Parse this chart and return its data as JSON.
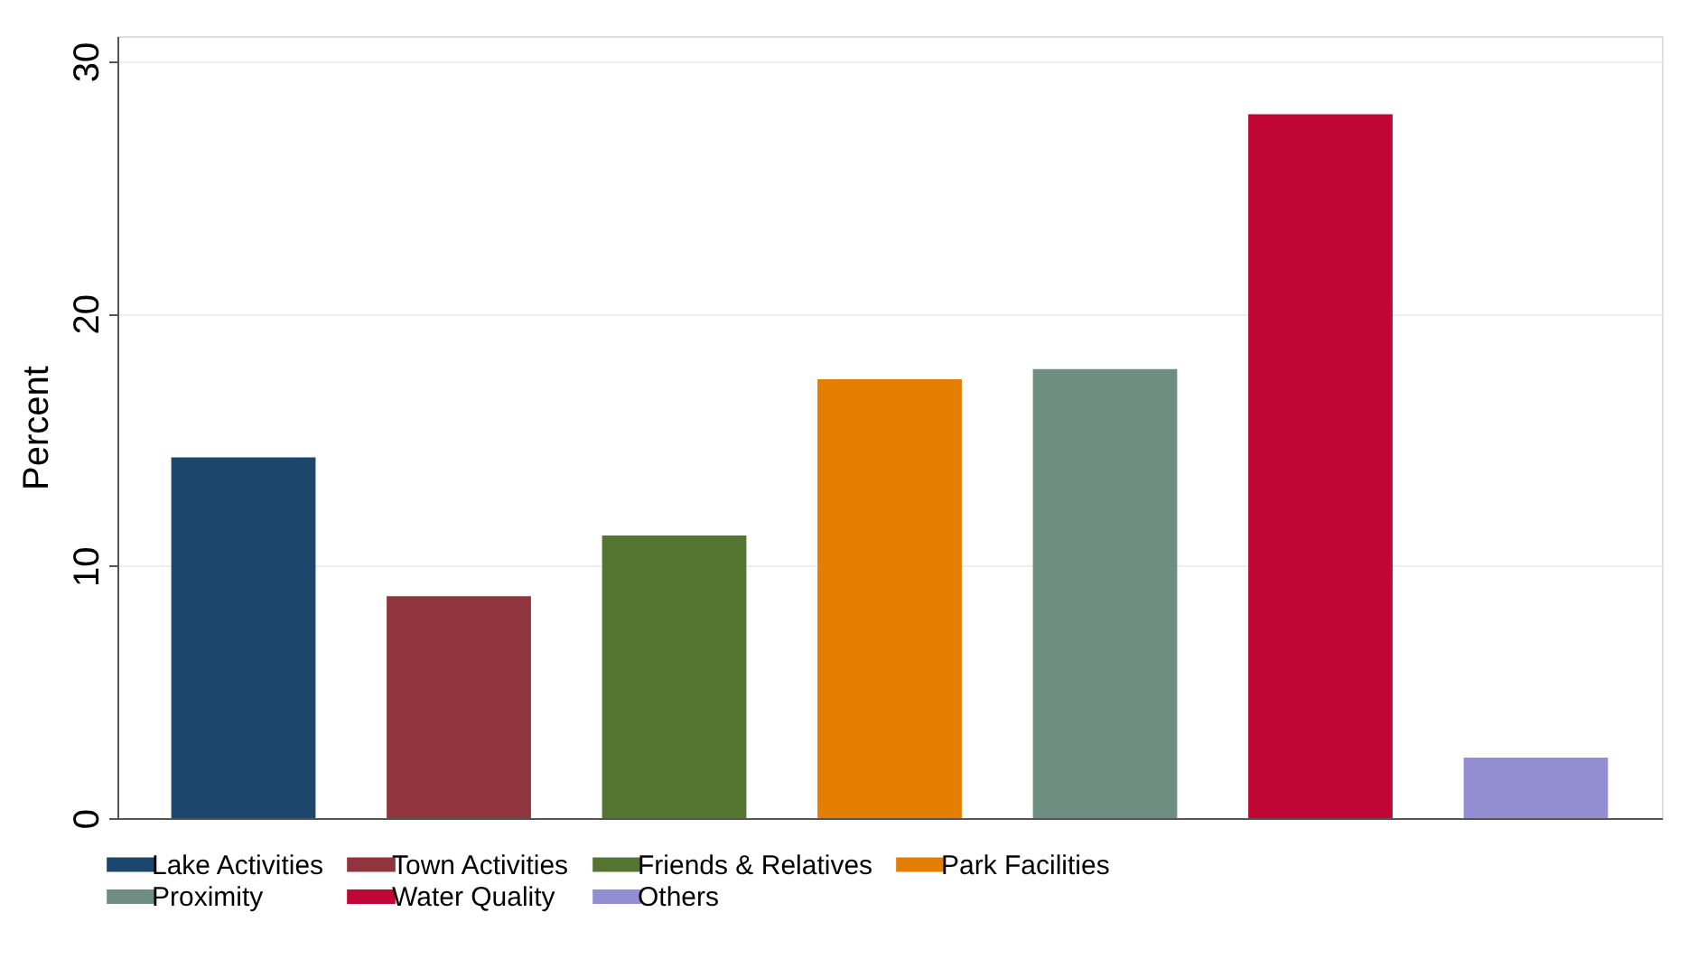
{
  "chart_data": {
    "type": "bar",
    "ylabel": "Percent",
    "categories": [
      null,
      null,
      null,
      null,
      null,
      null,
      null
    ],
    "series": [
      {
        "name": "Lake Activities",
        "color": "#1c466c",
        "values": [
          14.3,
          null,
          null,
          null,
          null,
          null,
          null
        ]
      },
      {
        "name": "Town Activities",
        "color": "#90353e",
        "values": [
          null,
          8.8,
          null,
          null,
          null,
          null,
          null
        ]
      },
      {
        "name": "Friends & Relatives",
        "color": "#557630",
        "values": [
          null,
          null,
          11.2,
          null,
          null,
          null,
          null
        ]
      },
      {
        "name": "Park Facilities",
        "color": "#e37e00",
        "values": [
          null,
          null,
          null,
          17.4,
          null,
          null,
          null
        ]
      },
      {
        "name": "Proximity",
        "color": "#6e8e82",
        "values": [
          null,
          null,
          null,
          null,
          17.8,
          null,
          null
        ]
      },
      {
        "name": "Water Quality",
        "color": "#c10534",
        "values": [
          null,
          null,
          null,
          null,
          null,
          27.9,
          null
        ]
      },
      {
        "name": "Others",
        "color": "#938dd2",
        "values": [
          null,
          null,
          null,
          null,
          null,
          null,
          2.4
        ]
      }
    ],
    "ylim": [
      0,
      31
    ],
    "yticks": [
      0,
      10,
      20,
      30
    ],
    "grid": "y",
    "legend": "bottom",
    "tick_labels": "y"
  }
}
